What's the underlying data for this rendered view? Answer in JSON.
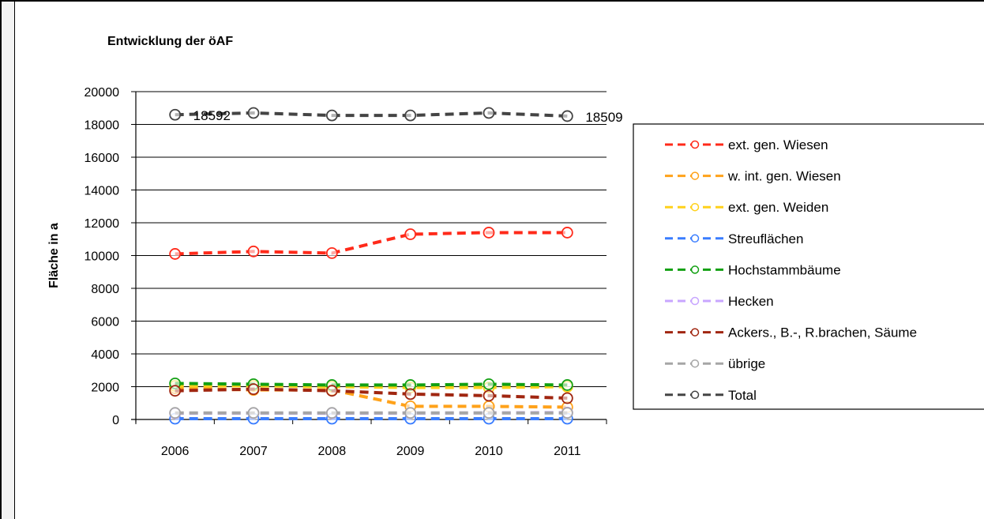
{
  "chart_data": {
    "type": "line",
    "title": "Entwicklung der öAF",
    "ylabel": "Fläche in a",
    "xlabel": "",
    "categories": [
      "2006",
      "2007",
      "2008",
      "2009",
      "2010",
      "2011"
    ],
    "ylim": [
      0,
      20000
    ],
    "yticks": [
      0,
      2000,
      4000,
      6000,
      8000,
      10000,
      12000,
      14000,
      16000,
      18000,
      20000
    ],
    "grid": true,
    "legend_position": "right",
    "series": [
      {
        "name": "ext. gen. Wiesen",
        "color": "#ff2a1a",
        "values": [
          10100,
          10250,
          10150,
          11300,
          11400,
          11400
        ]
      },
      {
        "name": "w. int. gen. Wiesen",
        "color": "#ffa21a",
        "values": [
          1900,
          1800,
          1800,
          800,
          800,
          750
        ]
      },
      {
        "name": "ext. gen. Weiden",
        "color": "#ffd11a",
        "values": [
          2050,
          2050,
          2000,
          1950,
          1950,
          2000
        ]
      },
      {
        "name": "Streuflächen",
        "color": "#3a7dff",
        "values": [
          50,
          50,
          50,
          50,
          50,
          50
        ]
      },
      {
        "name": "Hochstammbäume",
        "color": "#12a012",
        "values": [
          2200,
          2150,
          2100,
          2100,
          2150,
          2100
        ]
      },
      {
        "name": "Hecken",
        "color": "#c8a6ff",
        "values": [
          380,
          390,
          380,
          390,
          400,
          420
        ]
      },
      {
        "name": "Ackers., B.-, R.brachen, Säume",
        "color": "#a02610",
        "values": [
          1750,
          1850,
          1750,
          1550,
          1450,
          1300
        ]
      },
      {
        "name": "übrige",
        "color": "#a6a6a6",
        "values": [
          400,
          400,
          400,
          400,
          400,
          400
        ]
      },
      {
        "name": "Total",
        "color": "#444444",
        "values": [
          18592,
          18700,
          18550,
          18550,
          18700,
          18509
        ],
        "hollow": true
      }
    ],
    "annotations": [
      {
        "series": "Total",
        "index": 0,
        "text": "18592"
      },
      {
        "series": "Total",
        "index": 5,
        "text": "18509"
      }
    ]
  }
}
